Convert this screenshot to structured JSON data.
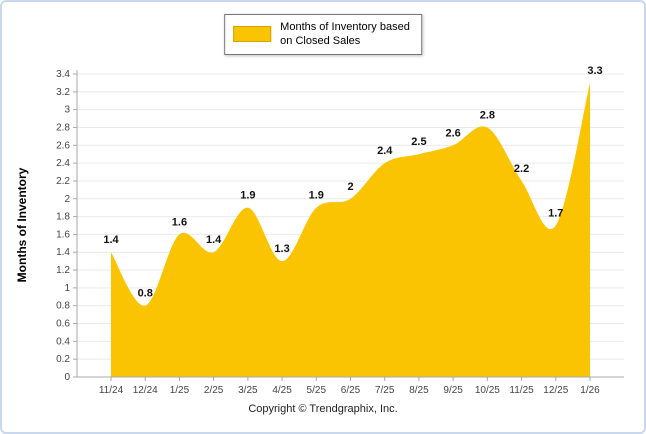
{
  "legend": {
    "line1": "Months of Inventory based",
    "line2": "on Closed Sales"
  },
  "footer": "Copyright © Trendgraphix, Inc.",
  "colors": {
    "area": "#FBC402",
    "grid": "#e9e9e9",
    "axis": "#a8a8a8",
    "tick_text": "#444444",
    "data_label": "#111111"
  },
  "chart_data": {
    "type": "area",
    "title": "Months of Inventory based on Closed Sales",
    "x": [
      "11/24",
      "12/24",
      "1/25",
      "2/25",
      "3/25",
      "4/25",
      "5/25",
      "6/25",
      "7/25",
      "8/25",
      "9/25",
      "10/25",
      "11/25",
      "12/25",
      "1/26"
    ],
    "values": [
      1.4,
      0.8,
      1.6,
      1.4,
      1.9,
      1.3,
      1.9,
      2,
      2.4,
      2.5,
      2.6,
      2.8,
      2.2,
      1.7,
      3.3
    ],
    "labels": [
      "1.4",
      "0.8",
      "1.6",
      "1.4",
      "1.9",
      "1.3",
      "1.9",
      "2",
      "2.4",
      "2.5",
      "2.6",
      "2.8",
      "2.2",
      "1.7",
      "3.3"
    ],
    "xlabel": "",
    "ylabel": "Months of Inventory",
    "ylim": [
      0,
      3.4
    ],
    "ytick_step": 0.2,
    "grid": true,
    "legend_position": "top-center",
    "fill_color": "#FBC402"
  }
}
